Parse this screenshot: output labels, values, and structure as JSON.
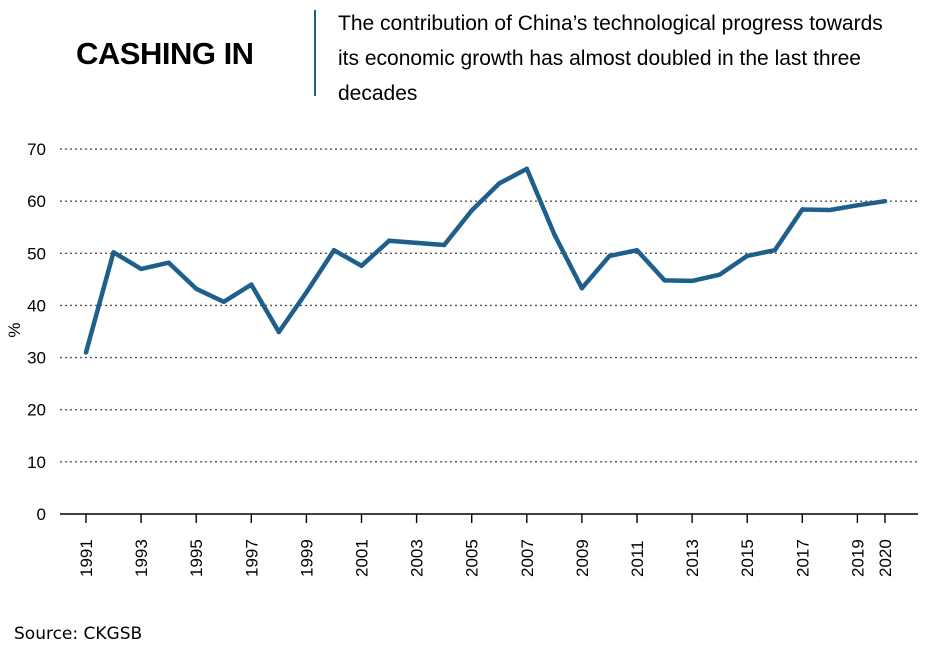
{
  "header": {
    "title": "CASHING IN",
    "subtitle": "The contribution of China’s technological progress towards its economic growth has almost doubled in the last three decades"
  },
  "source": "Source: CKGSB",
  "colors": {
    "line": "#1f5f8b",
    "accent_rule": "#1f5f8b",
    "grid": "#555555"
  },
  "chart_data": {
    "type": "line",
    "title": "CASHING IN",
    "subtitle": "The contribution of China’s technological progress towards its economic growth has almost doubled in the last three decades",
    "xlabel": "",
    "ylabel": "%",
    "ylim": [
      0,
      70
    ],
    "yticks": [
      0,
      10,
      20,
      30,
      40,
      50,
      60,
      70
    ],
    "xticks": [
      "1991",
      "1993",
      "1995",
      "1997",
      "1999",
      "2001",
      "2003",
      "2005",
      "2007",
      "2009",
      "2011",
      "2013",
      "2015",
      "2017",
      "2019",
      "2020"
    ],
    "grid": true,
    "x": [
      1991,
      1992,
      1993,
      1994,
      1995,
      1996,
      1997,
      1998,
      1999,
      2000,
      2001,
      2002,
      2003,
      2004,
      2005,
      2006,
      2007,
      2008,
      2009,
      2010,
      2011,
      2012,
      2013,
      2014,
      2015,
      2016,
      2017,
      2018,
      2019,
      2020
    ],
    "series": [
      {
        "values": [
          31,
          50.2,
          47,
          48.2,
          43.2,
          40.7,
          44,
          34.9,
          42.5,
          50.6,
          47.6,
          52.4,
          52,
          51.6,
          58.2,
          63.4,
          66.2,
          53.6,
          43.3,
          49.5,
          50.6,
          44.8,
          44.7,
          45.9,
          49.5,
          50.6,
          58.4,
          58.3,
          59.2,
          60
        ]
      }
    ]
  }
}
